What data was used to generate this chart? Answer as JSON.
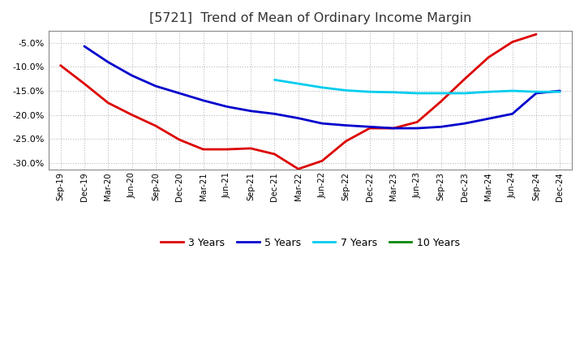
{
  "title": "[5721]  Trend of Mean of Ordinary Income Margin",
  "title_fontsize": 11.5,
  "background_color": "#ffffff",
  "plot_bg_color": "#ffffff",
  "grid_color": "#aaaaaa",
  "ylim": [
    -0.315,
    -0.025
  ],
  "yticks": [
    -0.3,
    -0.25,
    -0.2,
    -0.15,
    -0.1,
    -0.05
  ],
  "x_labels": [
    "Sep-19",
    "Dec-19",
    "Mar-20",
    "Jun-20",
    "Sep-20",
    "Dec-20",
    "Mar-21",
    "Jun-21",
    "Sep-21",
    "Dec-21",
    "Mar-22",
    "Jun-22",
    "Sep-22",
    "Dec-22",
    "Mar-23",
    "Jun-23",
    "Sep-23",
    "Dec-23",
    "Mar-24",
    "Jun-24",
    "Sep-24",
    "Dec-24"
  ],
  "series_order": [
    "3 Years",
    "5 Years",
    "7 Years",
    "10 Years"
  ],
  "series": {
    "3 Years": {
      "color": "#dd0000",
      "linewidth": 2.0,
      "data_x": [
        0,
        1,
        2,
        3,
        4,
        5,
        6,
        7,
        8,
        9,
        10,
        11,
        12,
        13,
        14,
        15,
        16,
        17,
        18,
        19,
        20
      ],
      "data_y": [
        -0.097,
        -0.135,
        -0.175,
        -0.2,
        -0.223,
        -0.252,
        -0.272,
        -0.272,
        -0.27,
        -0.282,
        -0.313,
        -0.296,
        -0.255,
        -0.228,
        -0.228,
        -0.215,
        -0.172,
        -0.125,
        -0.08,
        -0.048,
        -0.032
      ]
    },
    "5 Years": {
      "color": "#0000cc",
      "linewidth": 2.0,
      "data_x": [
        1,
        2,
        3,
        4,
        5,
        6,
        7,
        8,
        9,
        10,
        11,
        12,
        13,
        14,
        15,
        16,
        17,
        18,
        19,
        20,
        21
      ],
      "data_y": [
        -0.057,
        -0.09,
        -0.118,
        -0.14,
        -0.155,
        -0.17,
        -0.183,
        -0.192,
        -0.198,
        -0.207,
        -0.218,
        -0.222,
        -0.225,
        -0.228,
        -0.228,
        -0.225,
        -0.218,
        -0.208,
        -0.198,
        -0.155,
        -0.15
      ]
    },
    "7 Years": {
      "color": "#00ccee",
      "linewidth": 2.0,
      "data_x": [
        9,
        10,
        11,
        12,
        13,
        14,
        15,
        16,
        17,
        18,
        19,
        20,
        21
      ],
      "data_y": [
        -0.127,
        -0.135,
        -0.143,
        -0.149,
        -0.152,
        -0.153,
        -0.155,
        -0.155,
        -0.155,
        -0.152,
        -0.15,
        -0.152,
        -0.152
      ]
    },
    "10 Years": {
      "color": "#008800",
      "linewidth": 2.0,
      "data_x": [],
      "data_y": []
    }
  }
}
